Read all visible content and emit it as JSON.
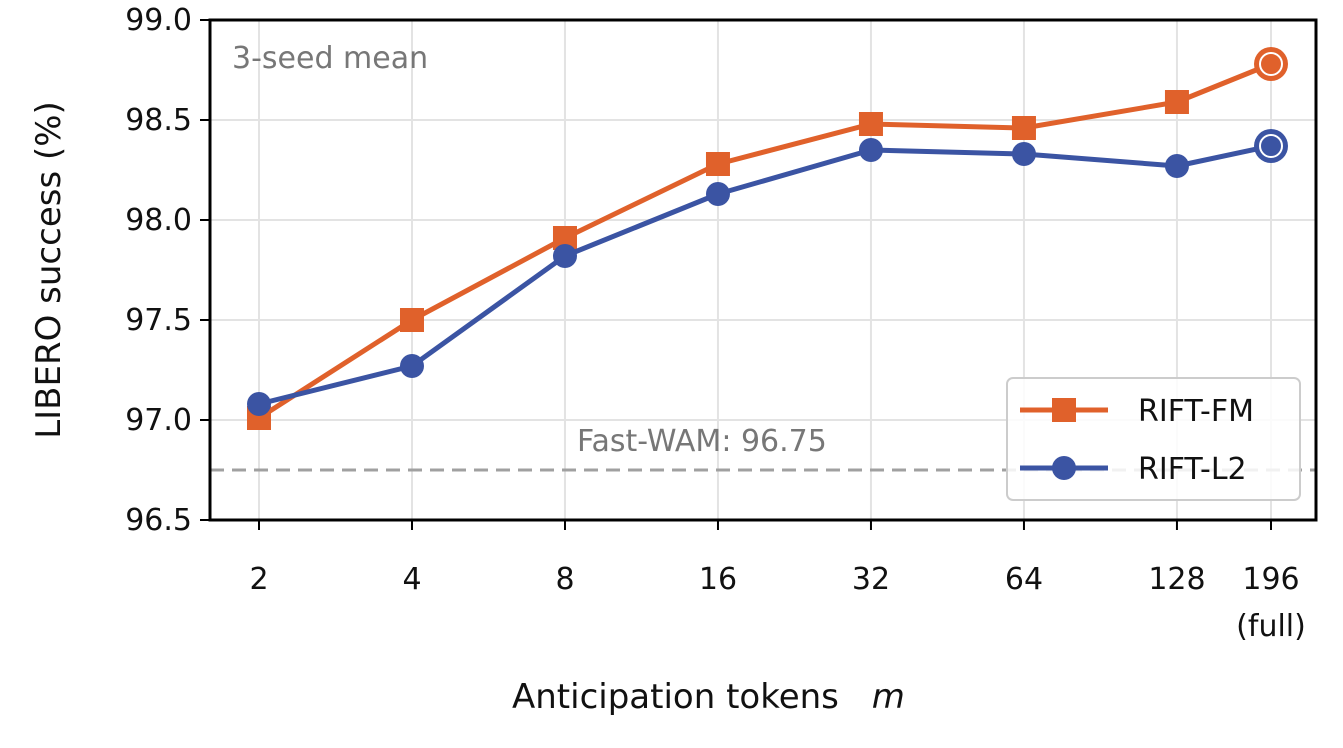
{
  "chart_data": {
    "type": "line",
    "xlabel": "Anticipation tokens",
    "xlabel_var": "m",
    "ylabel": "LIBERO success (%)",
    "ylim": [
      96.5,
      99.0
    ],
    "yticks": [
      "96.5",
      "97.0",
      "97.5",
      "98.0",
      "98.5",
      "99.0"
    ],
    "x_scale": "log2",
    "x": [
      2,
      4,
      8,
      16,
      32,
      64,
      128,
      196
    ],
    "xtick_labels": [
      "2",
      "4",
      "8",
      "16",
      "32",
      "64",
      "128",
      "196"
    ],
    "xtick_sub": [
      "",
      "",
      "",
      "",
      "",
      "",
      "",
      "(full)"
    ],
    "grid": true,
    "legend_position": "lower-right",
    "series": [
      {
        "name": "RIFT-FM",
        "color": "#e0612b",
        "marker": "square",
        "values": [
          97.01,
          97.5,
          97.91,
          98.28,
          98.48,
          98.46,
          98.59,
          98.78
        ]
      },
      {
        "name": "RIFT-L2",
        "color": "#3b54a3",
        "marker": "circle",
        "values": [
          97.08,
          97.27,
          97.82,
          98.13,
          98.35,
          98.33,
          98.27,
          98.37
        ]
      }
    ],
    "baseline": {
      "label": "Fast-WAM: 96.75",
      "value": 96.75,
      "color": "#a0a0a0"
    },
    "annotation": "3-seed mean"
  }
}
